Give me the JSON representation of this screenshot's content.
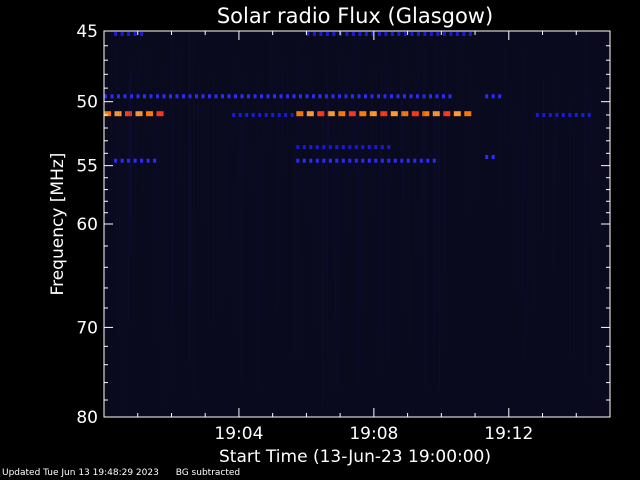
{
  "colors": {
    "background": "#000000",
    "axis": "#ffffff",
    "plot_background": "#0a0a1e",
    "weak_emission": "#1a1ad8",
    "medium_emission": "#2b2bff",
    "strong_emission": "#ff7a00",
    "peak_emission": "#ff3a1a",
    "strong_alt": "#ff9a30"
  },
  "footer": {
    "updated": "Updated Tue Jun 13 19:48:29 2023",
    "bg_note": "BG subtracted"
  },
  "chart_data": {
    "type": "heatmap",
    "title": "Solar radio Flux (Glasgow)",
    "xlabel": "Start Time (13-Jun-23 19:00:00)",
    "ylabel": "Frequency [MHz]",
    "xlim_minutes": [
      0,
      15
    ],
    "ylim_mhz": [
      45,
      80
    ],
    "y_axis_inverted": true,
    "y_scale": "log",
    "x_ticks": [
      {
        "minute": 4,
        "label": "19:04"
      },
      {
        "minute": 8,
        "label": "19:08"
      },
      {
        "minute": 12,
        "label": "19:12"
      }
    ],
    "y_ticks": [
      {
        "mhz": 45,
        "label": "45"
      },
      {
        "mhz": 50,
        "label": "50"
      },
      {
        "mhz": 55,
        "label": "55"
      },
      {
        "mhz": 60,
        "label": "60"
      },
      {
        "mhz": 70,
        "label": "70"
      },
      {
        "mhz": 80,
        "label": "80"
      }
    ],
    "y_minor_ticks_mhz": [
      46,
      47,
      48,
      49,
      51,
      52,
      53,
      54,
      56,
      57,
      58,
      59,
      62,
      64,
      66,
      68,
      72,
      74,
      76,
      78
    ],
    "x_minor_ticks_minutes": [
      1,
      2,
      3,
      5,
      6,
      7,
      9,
      10,
      11,
      13,
      14
    ],
    "emission_bands": [
      {
        "freq_mhz": 45.2,
        "start_min": 0.3,
        "end_min": 1.1,
        "level": "weak"
      },
      {
        "freq_mhz": 45.2,
        "start_min": 6.0,
        "end_min": 11.0,
        "level": "weak"
      },
      {
        "freq_mhz": 49.6,
        "start_min": 0.0,
        "end_min": 10.3,
        "level": "medium"
      },
      {
        "freq_mhz": 49.6,
        "start_min": 11.3,
        "end_min": 11.7,
        "level": "medium"
      },
      {
        "freq_mhz": 50.9,
        "start_min": 0.0,
        "end_min": 1.6,
        "level": "strong"
      },
      {
        "freq_mhz": 50.9,
        "start_min": 5.7,
        "end_min": 10.8,
        "level": "strong"
      },
      {
        "freq_mhz": 51.0,
        "start_min": 3.8,
        "end_min": 5.7,
        "level": "weak"
      },
      {
        "freq_mhz": 51.0,
        "start_min": 12.8,
        "end_min": 14.5,
        "level": "weak"
      },
      {
        "freq_mhz": 53.5,
        "start_min": 5.7,
        "end_min": 8.5,
        "level": "weak"
      },
      {
        "freq_mhz": 54.6,
        "start_min": 0.3,
        "end_min": 1.6,
        "level": "medium"
      },
      {
        "freq_mhz": 54.6,
        "start_min": 5.7,
        "end_min": 9.8,
        "level": "medium"
      },
      {
        "freq_mhz": 54.3,
        "start_min": 11.3,
        "end_min": 11.6,
        "level": "medium"
      }
    ]
  }
}
